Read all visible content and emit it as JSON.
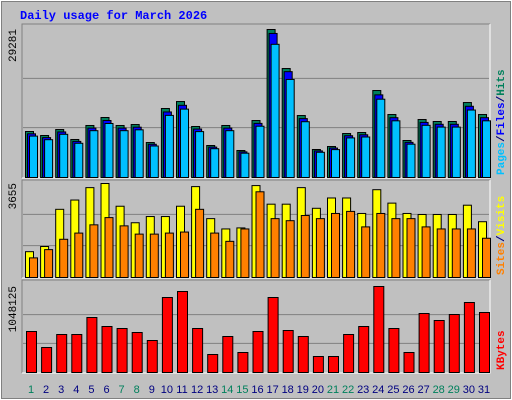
{
  "title": "Daily usage for March 2026",
  "legend_separator": "/",
  "chart_data": [
    {
      "type": "bar",
      "ylim": [
        0,
        29281
      ],
      "yticks": [
        29281
      ],
      "grid_divisions": 3,
      "series": [
        {
          "name": "Hits",
          "color": "#00805c",
          "values": [
            9100,
            8310,
            9490,
            7520,
            10290,
            11870,
            10290,
            10480,
            6920,
            13650,
            15030,
            10090,
            6330,
            10290,
            5340,
            11270,
            29281,
            21560,
            12260,
            5540,
            6130,
            8700,
            8900,
            17210,
            12460,
            7320,
            11470,
            11080,
            11080,
            14830,
            12460
          ]
        },
        {
          "name": "Files",
          "color": "#0000ff",
          "values": [
            8645,
            7895,
            9016,
            7144,
            9776,
            11277,
            9776,
            9956,
            6574,
            12968,
            14279,
            9586,
            6014,
            9776,
            5073,
            10707,
            28500,
            20940,
            11650,
            5263,
            5824,
            8265,
            8455,
            16350,
            11837,
            6954,
            10897,
            10526,
            10526,
            14089,
            11837
          ]
        },
        {
          "name": "Pages",
          "color": "#00c0ff",
          "values": [
            8190,
            7479,
            8541,
            6768,
            9261,
            10683,
            9261,
            9432,
            6228,
            12285,
            13527,
            9081,
            5697,
            9261,
            4806,
            10143,
            26350,
            19400,
            11034,
            4986,
            5517,
            7830,
            8010,
            15489,
            11214,
            6588,
            10323,
            9972,
            9972,
            13347,
            11214
          ]
        }
      ]
    },
    {
      "type": "bar",
      "ylim": [
        0,
        3655
      ],
      "yticks": [
        3655
      ],
      "grid_divisions": 3,
      "series": [
        {
          "name": "Visits",
          "color": "#ffff00",
          "values": [
            1004,
            1205,
            2651,
            3012,
            3494,
            3655,
            2771,
            2129,
            2370,
            2370,
            2771,
            3534,
            2289,
            1888,
            1928,
            3574,
            2851,
            2851,
            3494,
            2691,
            3092,
            3092,
            2490,
            3414,
            2892,
            2490,
            2450,
            2450,
            2450,
            2811,
            2169
          ]
        },
        {
          "name": "Sites",
          "color": "#ff8000",
          "values": [
            763,
            1084,
            1486,
            1727,
            2048,
            2329,
            2008,
            1687,
            1687,
            1727,
            1767,
            2651,
            1727,
            1406,
            1888,
            3333,
            2289,
            2209,
            2410,
            2289,
            2490,
            2570,
            1968,
            2490,
            2289,
            2289,
            1968,
            1888,
            1888,
            1888,
            1526
          ]
        }
      ]
    },
    {
      "type": "bar",
      "ylim": [
        0,
        1048125
      ],
      "yticks": [
        1048125
      ],
      "grid_divisions": 3,
      "categories": [
        "1",
        "2",
        "3",
        "4",
        "5",
        "6",
        "7",
        "8",
        "9",
        "10",
        "11",
        "12",
        "13",
        "14",
        "15",
        "16",
        "17",
        "18",
        "19",
        "20",
        "21",
        "22",
        "23",
        "24",
        "25",
        "26",
        "27",
        "28",
        "29",
        "30",
        "31"
      ],
      "label_colors": [
        "#00805c",
        "#000080",
        "#000080",
        "#000080",
        "#000080",
        "#000080",
        "#00805c",
        "#00805c",
        "#000080",
        "#000080",
        "#000080",
        "#000080",
        "#000080",
        "#00805c",
        "#00805c",
        "#000080",
        "#000080",
        "#000080",
        "#000080",
        "#000080",
        "#00805c",
        "#00805c",
        "#000080",
        "#000080",
        "#000080",
        "#000080",
        "#000080",
        "#00805c",
        "#00805c",
        "#000080",
        "#000080"
      ],
      "series": [
        {
          "name": "KBytes",
          "color": "#ff0000",
          "values": [
            499667,
            304675,
            463106,
            463106,
            670285,
            560602,
            536228,
            487480,
            389984,
            914025,
            987147,
            536228,
            219366,
            438732,
            243740,
            499667,
            914025,
            511854,
            438732,
            194992,
            194992,
            463106,
            560602,
            1048125,
            536228,
            243740,
            719033,
            633724,
            706846,
            853090,
            731220
          ]
        }
      ]
    }
  ]
}
